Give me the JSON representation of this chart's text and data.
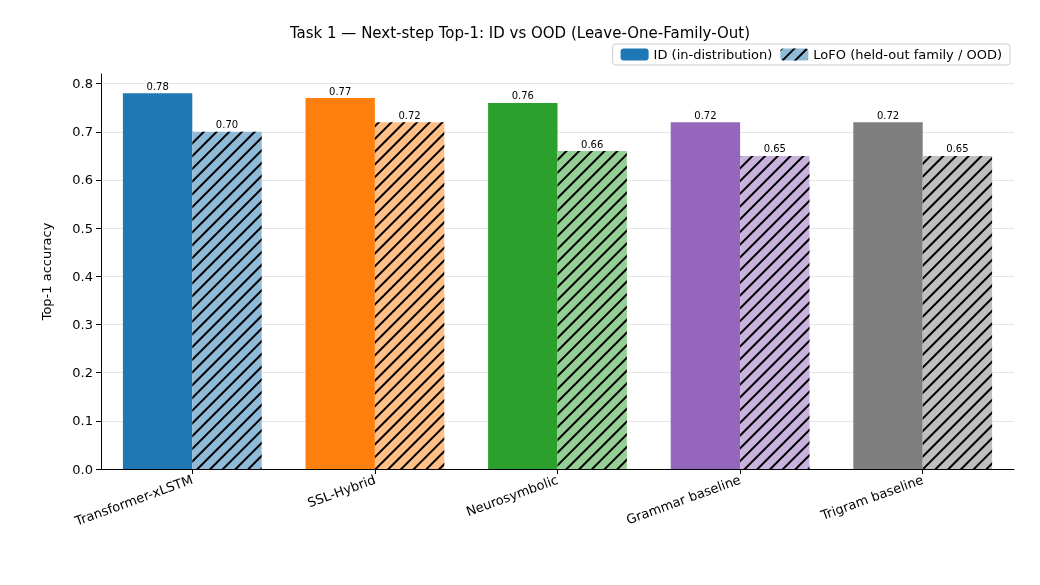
{
  "chart_data": {
    "type": "bar",
    "title": "Task 1 — Next-step Top-1: ID vs OOD (Leave-One-Family-Out)",
    "ylabel": "Top-1 accuracy",
    "categories": [
      "Transformer-xLSTM",
      "SSL-Hybrid",
      "Neurosymbolic",
      "Grammar baseline",
      "Trigram baseline"
    ],
    "series": [
      {
        "name": "ID (in-distribution)",
        "color": "#1f77b4",
        "colors": [
          "#1f77b4",
          "#ff7f0e",
          "#2ca02c",
          "#9467bd",
          "#7f7f7f"
        ],
        "values": [
          0.78,
          0.77,
          0.76,
          0.72,
          0.72
        ],
        "value_labels": [
          "0.78",
          "0.77",
          "0.76",
          "0.72",
          "0.72"
        ]
      },
      {
        "name": "LoFO (held-out family / OOD)",
        "color": "#8fbbd9",
        "colors": [
          "#8fbbd9",
          "#ffbf86",
          "#95cf95",
          "#c9b3de",
          "#bfbfbf"
        ],
        "values": [
          0.7,
          0.72,
          0.66,
          0.65,
          0.65
        ],
        "value_labels": [
          "0.70",
          "0.72",
          "0.66",
          "0.65",
          "0.65"
        ]
      }
    ],
    "ylim": [
      0,
      0.82
    ],
    "yticks": [
      {
        "value": 0,
        "label": "0.0"
      },
      {
        "value": 0.1,
        "label": "0.1"
      },
      {
        "value": 0.2,
        "label": "0.2"
      },
      {
        "value": 0.3,
        "label": "0.3"
      },
      {
        "value": 0.4,
        "label": "0.4"
      },
      {
        "value": 0.5,
        "label": "0.5"
      },
      {
        "value": 0.6,
        "label": "0.6"
      },
      {
        "value": 0.7,
        "label": "0.7"
      },
      {
        "value": 0.8,
        "label": "0.8"
      }
    ],
    "grid": "y",
    "legend": "top right"
  }
}
